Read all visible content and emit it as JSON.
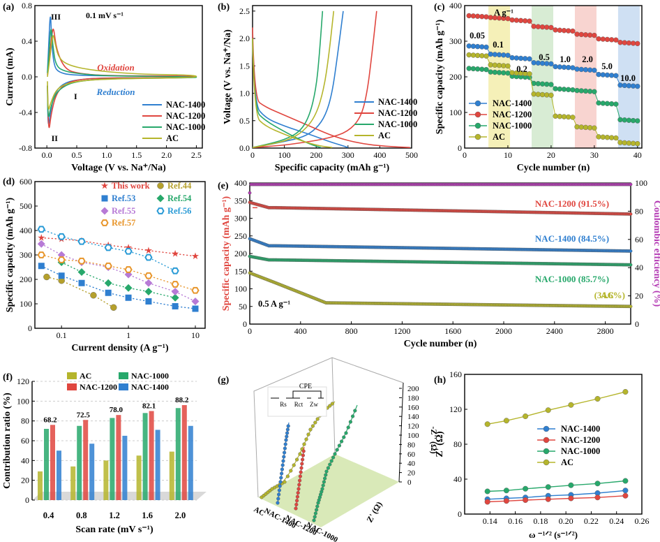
{
  "colors": {
    "nac1400": "#2f7fd0",
    "nac1200": "#e0463f",
    "nac1000": "#27a86b",
    "ac": "#b5b52c",
    "pink": "#b43ab4"
  },
  "chart_data": [
    {
      "id": "a",
      "panel": "(a)",
      "type": "line",
      "title": "0.1 mV s⁻¹",
      "xlabel": "Voltage (V vs. Na⁺/Na)",
      "ylabel": "Current (mA)",
      "xlim": [
        -0.2,
        2.6
      ],
      "ylim": [
        -0.8,
        0.8
      ],
      "xticks": [
        0.0,
        0.5,
        1.0,
        1.5,
        2.0,
        2.5
      ],
      "yticks": [
        -0.8,
        -0.4,
        0.0,
        0.4,
        0.8
      ],
      "annotations": {
        "peak3": "III",
        "peak2": "II",
        "peak1": "I",
        "ox": "Oxidation",
        "red": "Reduction"
      },
      "legend": [
        "NAC-1400",
        "NAC-1200",
        "NAC-1000",
        "AC"
      ],
      "series": [
        {
          "name": "NAC-1400",
          "key": "nac1400",
          "x": [
            0.01,
            0.03,
            0.06,
            0.08,
            0.12,
            0.2,
            0.4,
            1.0,
            2.5
          ],
          "y": [
            0.05,
            0.35,
            0.77,
            0.4,
            0.12,
            0.05,
            0.02,
            0.01,
            0.01
          ],
          "x2": [
            2.5,
            1.0,
            0.5,
            0.25,
            0.12,
            0.06,
            0.02,
            0.01
          ],
          "y2": [
            -0.01,
            -0.01,
            -0.03,
            -0.08,
            -0.2,
            -0.4,
            -0.6,
            -0.1
          ]
        },
        {
          "name": "NAC-1200",
          "key": "nac1200",
          "x": [
            0.01,
            0.04,
            0.08,
            0.11,
            0.16,
            0.3,
            0.5,
            1.0,
            2.5
          ],
          "y": [
            0.02,
            0.2,
            0.45,
            0.58,
            0.3,
            0.09,
            0.04,
            0.01,
            0.01
          ],
          "x2": [
            2.5,
            1.0,
            0.5,
            0.28,
            0.15,
            0.07,
            0.03,
            0.01
          ],
          "y2": [
            -0.01,
            -0.01,
            -0.03,
            -0.09,
            -0.2,
            -0.42,
            -0.65,
            -0.1
          ]
        },
        {
          "name": "NAC-1000",
          "key": "nac1000",
          "x": [
            0.01,
            0.04,
            0.07,
            0.1,
            0.15,
            0.3,
            0.6,
            1.0,
            2.5
          ],
          "y": [
            0.04,
            0.3,
            0.6,
            0.35,
            0.12,
            0.06,
            0.03,
            0.01,
            0.0
          ],
          "x2": [
            2.5,
            1.0,
            0.5,
            0.3,
            0.15,
            0.06,
            0.02,
            0.01
          ],
          "y2": [
            -0.01,
            -0.02,
            -0.05,
            -0.1,
            -0.18,
            -0.35,
            -0.5,
            -0.1
          ]
        },
        {
          "name": "AC",
          "key": "ac",
          "x": [
            0.01,
            0.05,
            0.1,
            0.13,
            0.2,
            0.4,
            0.8,
            1.5,
            2.5
          ],
          "y": [
            0.0,
            0.2,
            0.5,
            0.4,
            0.2,
            0.12,
            0.07,
            0.03,
            0.02
          ],
          "x2": [
            2.5,
            1.2,
            0.6,
            0.3,
            0.15,
            0.06,
            0.02,
            0.01
          ],
          "y2": [
            -0.01,
            -0.02,
            -0.04,
            -0.08,
            -0.15,
            -0.3,
            -0.4,
            -0.05
          ]
        }
      ]
    },
    {
      "id": "b",
      "panel": "(b)",
      "type": "line",
      "xlabel": "Specific capacity (mAh g⁻¹)",
      "ylabel": "Voltage (V vs. Na⁺/Na)",
      "xlim": [
        0,
        500
      ],
      "ylim": [
        0,
        2.6
      ],
      "xticks": [
        0,
        100,
        200,
        300,
        400,
        500
      ],
      "yticks": [
        0.0,
        0.5,
        1.0,
        1.5,
        2.0,
        2.5
      ],
      "legend": [
        "NAC-1400",
        "NAC-1200",
        "NAC-1000",
        "AC"
      ],
      "series": [
        {
          "name": "NAC-1400",
          "key": "nac1400",
          "dis_x": [
            0,
            5,
            40,
            100,
            180,
            240,
            280,
            300
          ],
          "dis_y": [
            2.0,
            0.8,
            0.55,
            0.4,
            0.25,
            0.12,
            0.05,
            0.01
          ],
          "ch_x": [
            0,
            40,
            100,
            160,
            200,
            230,
            250,
            265,
            285
          ],
          "ch_y": [
            0.01,
            0.05,
            0.12,
            0.2,
            0.35,
            0.6,
            1.0,
            1.6,
            2.5
          ]
        },
        {
          "name": "NAC-1200",
          "key": "nac1200",
          "dis_x": [
            0,
            5,
            40,
            100,
            180,
            260,
            340,
            420,
            495
          ],
          "dis_y": [
            2.2,
            0.9,
            0.75,
            0.6,
            0.4,
            0.2,
            0.08,
            0.03,
            0.01
          ],
          "ch_x": [
            0,
            80,
            160,
            240,
            300,
            340,
            360,
            375,
            390
          ],
          "ch_y": [
            0.01,
            0.04,
            0.1,
            0.18,
            0.3,
            0.55,
            1.0,
            1.7,
            2.5
          ]
        },
        {
          "name": "NAC-1000",
          "key": "nac1000",
          "dis_x": [
            0,
            5,
            40,
            100,
            150,
            190,
            215
          ],
          "dis_y": [
            2.0,
            0.7,
            0.5,
            0.3,
            0.15,
            0.05,
            0.01
          ],
          "ch_x": [
            0,
            40,
            100,
            150,
            180,
            200,
            210,
            220
          ],
          "ch_y": [
            0.01,
            0.06,
            0.15,
            0.3,
            0.6,
            1.1,
            1.7,
            2.5
          ]
        },
        {
          "name": "AC",
          "key": "ac",
          "dis_x": [
            0,
            5,
            40,
            100,
            160,
            210,
            250
          ],
          "dis_y": [
            2.0,
            0.6,
            0.4,
            0.25,
            0.12,
            0.04,
            0.01
          ],
          "ch_x": [
            0,
            50,
            110,
            160,
            200,
            225,
            240,
            255
          ],
          "ch_y": [
            0.01,
            0.06,
            0.14,
            0.3,
            0.6,
            1.1,
            1.7,
            2.5
          ]
        }
      ]
    },
    {
      "id": "c",
      "panel": "(c)",
      "type": "scatter",
      "xlabel": "Cycle number (n)",
      "ylabel": "Specific capacity (mAh g⁻¹)",
      "xlim": [
        0,
        41
      ],
      "ylim": [
        0,
        400
      ],
      "xticks": [
        0,
        10,
        20,
        30,
        40
      ],
      "yticks": [
        0,
        100,
        200,
        300,
        400
      ],
      "rate_unit": "A g⁻¹",
      "rates": [
        "0.05",
        "0.1",
        "0.2",
        "0.5",
        "1.0",
        "2.0",
        "5.0",
        "10.0"
      ],
      "legend": [
        "NAC-1400",
        "NAC-1200",
        "NAC-1000",
        "AC"
      ],
      "bands": [
        [
          5.5,
          10.5,
          "#f5f0b8"
        ],
        [
          15.5,
          20.5,
          "#d8ecd4"
        ],
        [
          25.5,
          30.5,
          "#f8d4d0"
        ],
        [
          35.5,
          40.5,
          "#cfe0f3"
        ]
      ],
      "series": [
        {
          "name": "NAC-1400",
          "key": "nac1400",
          "levels": [
            285,
            262,
            252,
            238,
            227,
            220,
            205,
            175
          ]
        },
        {
          "name": "NAC-1200",
          "key": "nac1200",
          "levels": [
            370,
            365,
            358,
            340,
            330,
            318,
            305,
            295
          ]
        },
        {
          "name": "NAC-1000",
          "key": "nac1000",
          "levels": [
            222,
            212,
            200,
            180,
            165,
            160,
            125,
            78
          ]
        },
        {
          "name": "AC",
          "key": "ac",
          "levels": [
            260,
            232,
            210,
            150,
            88,
            58,
            30,
            14
          ]
        }
      ]
    },
    {
      "id": "d",
      "panel": "(d)",
      "type": "scatter",
      "xlabel": "Current density (A g⁻¹)",
      "ylabel": "Specific capacity (mAh g⁻¹)",
      "xlim_log": [
        0.04,
        14
      ],
      "ylim": [
        0,
        600
      ],
      "xticks": [
        0.1,
        1,
        10
      ],
      "xticklabels": [
        "0.1",
        "1",
        "10"
      ],
      "yticks": [
        0,
        100,
        200,
        300,
        400,
        500,
        600
      ],
      "series": [
        {
          "name": "This work",
          "marker": "star",
          "color": "#e0463f",
          "x": [
            0.05,
            0.1,
            0.2,
            0.5,
            1,
            2,
            5,
            10
          ],
          "y": [
            370,
            365,
            358,
            340,
            330,
            318,
            305,
            295
          ]
        },
        {
          "name": "Ref.44",
          "marker": "circle",
          "color": "#b5a02c",
          "x": [
            0.06,
            0.1,
            0.3,
            0.6
          ],
          "y": [
            210,
            195,
            135,
            85
          ]
        },
        {
          "name": "Ref.53",
          "marker": "square",
          "color": "#2f7fd0",
          "x": [
            0.05,
            0.1,
            0.2,
            0.5,
            1,
            2,
            5,
            10
          ],
          "y": [
            255,
            215,
            185,
            145,
            125,
            110,
            90,
            80
          ]
        },
        {
          "name": "Ref.54",
          "marker": "diamond",
          "color": "#27a86b",
          "x": [
            0.1,
            0.2,
            0.5,
            1,
            2,
            5
          ],
          "y": [
            270,
            230,
            185,
            165,
            150,
            125
          ]
        },
        {
          "name": "Ref.55",
          "marker": "diamond",
          "color": "#b77ad6",
          "x": [
            0.05,
            0.1,
            0.2,
            0.5,
            1,
            2,
            5,
            10
          ],
          "y": [
            345,
            300,
            270,
            250,
            220,
            185,
            150,
            110
          ]
        },
        {
          "name": "Ref.56",
          "marker": "hexagon",
          "color": "#2a9bd6",
          "x": [
            0.05,
            0.1,
            0.2,
            0.5,
            1,
            2,
            5
          ],
          "y": [
            405,
            375,
            355,
            330,
            315,
            290,
            235
          ]
        },
        {
          "name": "Ref.57",
          "marker": "hexagon",
          "color": "#e8962c",
          "x": [
            0.05,
            0.1,
            0.2,
            0.5,
            1,
            2,
            5,
            10
          ],
          "y": [
            300,
            280,
            275,
            255,
            240,
            215,
            180,
            155
          ]
        }
      ]
    },
    {
      "id": "e",
      "panel": "(e)",
      "type": "scatter",
      "xlabel": "Cycle number (n)",
      "ylabel": "Specific capacity (mAh g⁻¹)",
      "ylabel2": "Coulombic efficiency (%)",
      "xlim": [
        0,
        3000
      ],
      "ylim": [
        0,
        400
      ],
      "ylim2": [
        0,
        100
      ],
      "xticks": [
        0,
        400,
        800,
        1200,
        1600,
        2000,
        2400,
        2800
      ],
      "yticks": [
        0,
        50,
        100,
        150,
        200,
        250,
        300,
        350,
        400
      ],
      "yticks2": [
        0,
        20,
        40,
        60,
        80,
        100
      ],
      "current": "0.5 A g⁻¹",
      "series": [
        {
          "name": "NAC-1200",
          "label": "NAC-1200  (91.5%)",
          "key": "nac1200",
          "start": 345,
          "plateau": 330,
          "end": 312
        },
        {
          "name": "NAC-1400",
          "label": "NAC-1400  (84.5%)",
          "key": "nac1400",
          "start": 242,
          "plateau": 222,
          "end": 207
        },
        {
          "name": "NAC-1000",
          "label": "NAC-1000  (85.7%)",
          "key": "nac1000",
          "start": 192,
          "plateau": 182,
          "end": 168
        },
        {
          "name": "AC",
          "label": "AC",
          "retention": "(34.6%)",
          "key": "ac",
          "start": 145,
          "plateau": 62,
          "end": 50
        },
        {
          "name": "CE",
          "key": "pink",
          "value": 99
        }
      ]
    },
    {
      "id": "f",
      "panel": "(f)",
      "type": "bar",
      "xlabel": "Scan rate (mV s⁻¹)",
      "ylabel": "Contribution ratio (%)",
      "ylim": [
        0,
        120
      ],
      "yticks": [
        0,
        20,
        40,
        60,
        80,
        100,
        120
      ],
      "categories": [
        "0.4",
        "0.8",
        "1.2",
        "1.6",
        "2.0"
      ],
      "legend": [
        "AC",
        "NAC-1200",
        "NAC-1000",
        "NAC-1400"
      ],
      "series": [
        {
          "name": "AC",
          "key": "ac",
          "values": [
            29,
            34,
            40,
            45,
            49
          ]
        },
        {
          "name": "NAC-1000",
          "key": "nac1000",
          "values": [
            72,
            75,
            83,
            88,
            93
          ]
        },
        {
          "name": "NAC-1200",
          "key": "nac1200",
          "values": [
            76,
            81,
            86,
            90,
            96
          ]
        },
        {
          "name": "NAC-1400",
          "key": "nac1400",
          "values": [
            50,
            57,
            65,
            71,
            75
          ]
        }
      ],
      "labels": [
        "68.2",
        "72.5",
        "78.0",
        "82.1",
        "88.2"
      ]
    },
    {
      "id": "g",
      "panel": "(g)",
      "type": "scatter",
      "xlabel": "Z' (Ω)",
      "zlabel": "-Z'' (Ω)",
      "circuit": "CPE",
      "zticks": [
        0,
        20,
        40,
        60,
        80,
        100,
        120,
        140,
        160,
        180,
        200
      ],
      "xticks": [
        "0",
        "20",
        "40",
        "60",
        "80"
      ],
      "categories": [
        "AC",
        "NAC-1400",
        "NAC-1200",
        "NAC-1000"
      ],
      "circuit_labels": [
        "Rs",
        "Rct",
        "Zw"
      ]
    },
    {
      "id": "h",
      "panel": "(h)",
      "type": "line",
      "xlabel": "ω ⁻¹ᐟ² (s⁻¹ᐟ²)",
      "ylabel": "Z' (Ω)",
      "xlim": [
        0.12,
        0.26
      ],
      "ylim": [
        0,
        160
      ],
      "xticks": [
        0.14,
        0.16,
        0.18,
        0.2,
        0.22,
        0.24,
        0.26
      ],
      "yticks": [
        0,
        40,
        80,
        120,
        160
      ],
      "legend": [
        "NAC-1400",
        "NAC-1200",
        "NAC-1000",
        "AC"
      ],
      "series": [
        {
          "name": "NAC-1400",
          "key": "nac1400",
          "x": [
            0.138,
            0.153,
            0.168,
            0.186,
            0.204,
            0.225,
            0.247
          ],
          "y": [
            17,
            18,
            19,
            21,
            22,
            24,
            27
          ]
        },
        {
          "name": "NAC-1200",
          "key": "nac1200",
          "x": [
            0.138,
            0.153,
            0.168,
            0.186,
            0.204,
            0.225,
            0.247
          ],
          "y": [
            14,
            15,
            16,
            17,
            18,
            19,
            21
          ]
        },
        {
          "name": "NAC-1000",
          "key": "nac1000",
          "x": [
            0.138,
            0.153,
            0.168,
            0.186,
            0.204,
            0.225,
            0.247
          ],
          "y": [
            26,
            27,
            29,
            31,
            33,
            35,
            38
          ]
        },
        {
          "name": "AC",
          "key": "ac",
          "x": [
            0.138,
            0.153,
            0.168,
            0.186,
            0.204,
            0.225,
            0.247
          ],
          "y": [
            103,
            107,
            112,
            119,
            125,
            132,
            140
          ]
        }
      ]
    }
  ]
}
